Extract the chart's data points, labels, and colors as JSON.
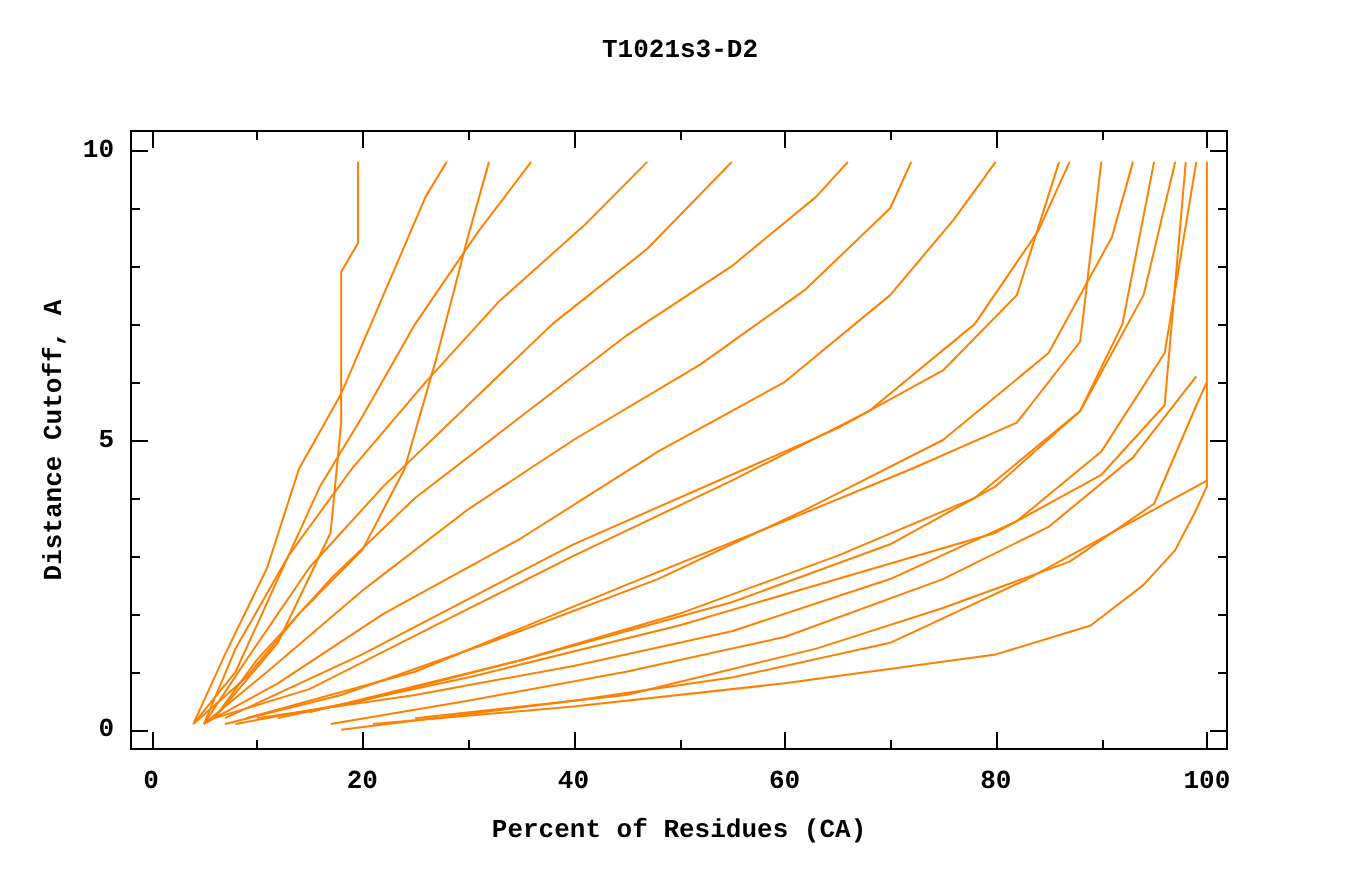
{
  "chart_data": {
    "type": "line",
    "title": "T1021s3-D2",
    "xlabel": "Percent of Residues (CA)",
    "ylabel": "Distance Cutoff, A",
    "xlim": [
      -2,
      102
    ],
    "xticks": [
      0,
      {
        "value": 10,
        "label": null
      },
      20,
      {
        "value": 30,
        "label": null
      },
      40,
      {
        "value": 50,
        "label": null
      },
      60,
      {
        "value": 70,
        "label": null
      },
      80,
      {
        "value": 90,
        "label": null
      },
      100
    ],
    "ylim": [
      -0.35,
      10.35
    ],
    "yticks": [
      0,
      {
        "value": 1,
        "label": null
      },
      {
        "value": 2,
        "label": null
      },
      {
        "value": 3,
        "label": null
      },
      {
        "value": 4,
        "label": null
      },
      5,
      {
        "value": 6,
        "label": null
      },
      {
        "value": 7,
        "label": null
      },
      {
        "value": 8,
        "label": null
      },
      {
        "value": 9,
        "label": null
      },
      10
    ],
    "grid": false,
    "legend": false,
    "series": [
      {
        "color": "#ff8000",
        "x": [
          21,
          40,
          60,
          80,
          89,
          94,
          97,
          99,
          100,
          100
        ],
        "values": [
          0.1,
          0.4,
          0.8,
          1.3,
          1.8,
          2.5,
          3.1,
          3.8,
          4.2,
          9.8
        ]
      },
      {
        "color": "#ff8000",
        "x": [
          18,
          40,
          55,
          70,
          83,
          92,
          97,
          100
        ],
        "values": [
          0,
          0.5,
          0.9,
          1.5,
          2.6,
          3.5,
          4,
          4.3
        ]
      },
      {
        "color": "#ff8000",
        "x": [
          25,
          45,
          63,
          75,
          87,
          95,
          99,
          100
        ],
        "values": [
          0.2,
          0.6,
          1.4,
          2.1,
          2.9,
          3.9,
          5.6,
          6
        ]
      },
      {
        "color": "#ff8000",
        "x": [
          17,
          30,
          45,
          60,
          75,
          85,
          93,
          99
        ],
        "values": [
          0.1,
          0.5,
          1,
          1.6,
          2.6,
          3.5,
          4.7,
          6.1
        ]
      },
      {
        "color": "#ff8000",
        "x": [
          10,
          25,
          40,
          55,
          70,
          82,
          90,
          96,
          99
        ],
        "values": [
          0.2,
          0.6,
          1.1,
          1.7,
          2.6,
          3.6,
          4.8,
          6.5,
          9.8
        ]
      },
      {
        "color": "#ff8000",
        "x": [
          12,
          30,
          50,
          65,
          80,
          90,
          96,
          98
        ],
        "values": [
          0.2,
          0.9,
          1.8,
          2.6,
          3.4,
          4.4,
          5.6,
          9.8
        ]
      },
      {
        "color": "#ff8000",
        "x": [
          15,
          35,
          55,
          70,
          80,
          88,
          92,
          95
        ],
        "values": [
          0.3,
          1.2,
          2.2,
          3.2,
          4.2,
          5.5,
          7,
          9.8
        ]
      },
      {
        "color": "#ff8000",
        "x": [
          8,
          20,
          35,
          50,
          65,
          78,
          88,
          94,
          97
        ],
        "values": [
          0.1,
          0.5,
          1.2,
          2,
          3,
          4,
          5.5,
          7.5,
          9.8
        ]
      },
      {
        "color": "#ff8000",
        "x": [
          9,
          25,
          45,
          60,
          72,
          82,
          88,
          90
        ],
        "values": [
          0.2,
          1,
          2.5,
          3.6,
          4.5,
          5.3,
          6.7,
          9.8
        ]
      },
      {
        "color": "#ff8000",
        "x": [
          7,
          18,
          32,
          48,
          62,
          75,
          85,
          91,
          93
        ],
        "values": [
          0.1,
          0.6,
          1.5,
          2.6,
          3.8,
          5,
          6.5,
          8.5,
          9.8
        ]
      },
      {
        "color": "#ff8000",
        "x": [
          7,
          20,
          40,
          55,
          65,
          75,
          82,
          86
        ],
        "values": [
          0.2,
          1.3,
          3.2,
          4.4,
          5.2,
          6.2,
          7.5,
          9.8
        ]
      },
      {
        "color": "#ff8000",
        "x": [
          6,
          15,
          28,
          40,
          55,
          68,
          78,
          84,
          87
        ],
        "values": [
          0.2,
          0.7,
          1.9,
          3,
          4.3,
          5.5,
          7,
          8.6,
          9.8
        ]
      },
      {
        "color": "#ff8000",
        "x": [
          5,
          12,
          22,
          35,
          48,
          60,
          70,
          76,
          80
        ],
        "values": [
          0.1,
          0.8,
          2,
          3.3,
          4.8,
          6,
          7.5,
          8.8,
          9.8
        ]
      },
      {
        "color": "#ff8000",
        "x": [
          5,
          11,
          20,
          30,
          40,
          52,
          62,
          70,
          72
        ],
        "values": [
          0.1,
          1,
          2.4,
          3.8,
          5,
          6.3,
          7.6,
          9,
          9.8
        ]
      },
      {
        "color": "#ff8000",
        "x": [
          6,
          10,
          17,
          25,
          35,
          45,
          55,
          63,
          66
        ],
        "values": [
          0.2,
          1.2,
          2.6,
          4,
          5.4,
          6.8,
          8,
          9.2,
          9.8
        ]
      },
      {
        "color": "#ff8000",
        "x": [
          5,
          9,
          15,
          22,
          30,
          38,
          47,
          55
        ],
        "values": [
          0.1,
          1.2,
          2.8,
          4.2,
          5.6,
          7,
          8.3,
          9.8
        ]
      },
      {
        "color": "#ff8000",
        "x": [
          5,
          8,
          13,
          19,
          26,
          33,
          41,
          47
        ],
        "values": [
          0.1,
          1.4,
          3,
          4.5,
          6,
          7.4,
          8.7,
          9.8
        ]
      },
      {
        "color": "#ff8000",
        "x": [
          4,
          8,
          12,
          16,
          20,
          25,
          31,
          36
        ],
        "values": [
          0.1,
          1,
          2.6,
          4.2,
          5.4,
          7,
          8.6,
          9.8
        ]
      },
      {
        "color": "#ff8000",
        "x": [
          4,
          9,
          14,
          20,
          24,
          27,
          30,
          32
        ],
        "values": [
          0.1,
          0.9,
          2,
          3.1,
          4.5,
          6.4,
          8.5,
          9.8
        ]
      },
      {
        "color": "#ff8000",
        "x": [
          4,
          7,
          11,
          14,
          18,
          22,
          26,
          28
        ],
        "values": [
          0.1,
          1.3,
          2.8,
          4.5,
          5.8,
          7.5,
          9.2,
          9.8
        ]
      },
      {
        "color": "#ff8000",
        "x": [
          6,
          12,
          17,
          18,
          18,
          19.6,
          19.6
        ],
        "values": [
          0.2,
          1.5,
          3.4,
          5.3,
          7.9,
          8.4,
          9.8
        ]
      }
    ]
  }
}
